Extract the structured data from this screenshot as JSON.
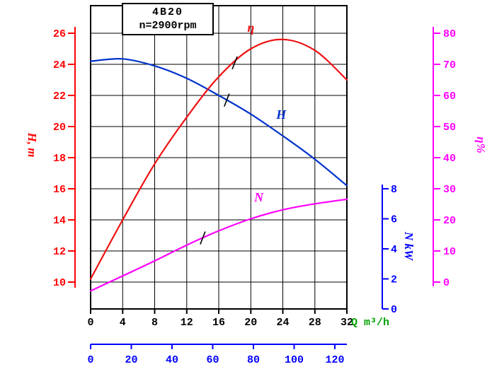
{
  "title_box": {
    "model": "4B20",
    "speed": "n=2900rpm"
  },
  "chart_data": {
    "type": "line",
    "grid": true,
    "background": "#ffffff",
    "frame_color": "#000000",
    "x_axis": {
      "label": "Q m³/h",
      "label_color": "#00a000",
      "tick_color": "#000000",
      "min": 0,
      "max": 32,
      "ticks": [
        0,
        4,
        8,
        12,
        16,
        20,
        24,
        28,
        32
      ]
    },
    "x_axis_secondary": {
      "color": "#0000ff",
      "min": 0,
      "max": 120,
      "ticks": [
        0,
        20,
        40,
        60,
        80,
        100,
        120
      ]
    },
    "y_axes": {
      "head": {
        "label": "H, m",
        "color": "#ff0000",
        "side": "left",
        "min": 10,
        "max": 26,
        "ticks": [
          10,
          12,
          14,
          16,
          18,
          20,
          22,
          24,
          26
        ]
      },
      "efficiency": {
        "label": "η%",
        "color": "#ff00ff",
        "side": "right-outer",
        "min": 0,
        "max": 80,
        "ticks": [
          0,
          10,
          20,
          30,
          40,
          50,
          60,
          70,
          80
        ]
      },
      "power": {
        "label": "N kW",
        "color": "#0000ff",
        "side": "right-inner",
        "min": 0,
        "max": 8,
        "ticks": [
          0,
          2,
          4,
          6,
          8
        ]
      }
    },
    "q_values": [
      0,
      4,
      8,
      12,
      16,
      20,
      24,
      28,
      32
    ],
    "series": [
      {
        "id": "head",
        "name": "H",
        "axis": "head",
        "color": "#0033cc",
        "values": [
          24.2,
          24.35,
          23.9,
          23.1,
          22.0,
          20.8,
          19.4,
          17.9,
          16.2
        ],
        "label_at": {
          "q": 23.8,
          "v": 20.5
        }
      },
      {
        "id": "efficiency",
        "name": "η",
        "axis": "efficiency",
        "color": "#ee1111",
        "values": [
          1,
          20,
          38,
          53,
          66,
          75,
          78,
          74.5,
          65
        ],
        "label_at": {
          "q": 20,
          "v": 80.5
        }
      },
      {
        "id": "power",
        "name": "N",
        "axis": "power",
        "color": "#ff00ff",
        "values": [
          1.2,
          2.2,
          3.2,
          4.25,
          5.2,
          6.0,
          6.6,
          7.0,
          7.3
        ],
        "label_at": {
          "q": 21,
          "v": 7.15
        }
      }
    ],
    "duty_marks": [
      {
        "series": "efficiency",
        "q": 18
      },
      {
        "series": "head",
        "q": 17
      },
      {
        "series": "power",
        "q": 14
      }
    ]
  }
}
